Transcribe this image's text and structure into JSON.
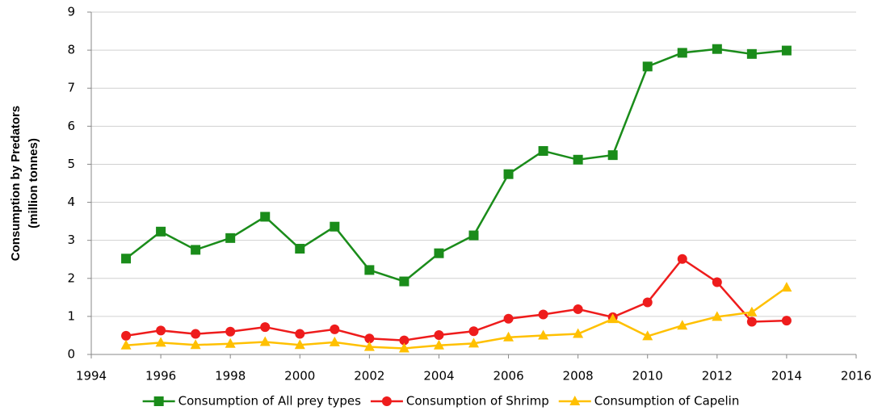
{
  "chart_data": {
    "type": "line",
    "y_label": [
      "Consumption by Predators",
      "(million  tonnes)"
    ],
    "x": [
      1995,
      1996,
      1997,
      1998,
      1999,
      2000,
      2001,
      2002,
      2003,
      2004,
      2005,
      2006,
      2007,
      2008,
      2009,
      2010,
      2011,
      2012,
      2013,
      2014
    ],
    "series": [
      {
        "name": "Consumption of All prey types",
        "color": "#1a8c1a",
        "marker": "square",
        "values": [
          2.52,
          3.23,
          2.75,
          3.06,
          3.62,
          2.78,
          3.36,
          2.22,
          1.92,
          2.66,
          3.13,
          4.74,
          5.35,
          5.12,
          5.24,
          7.57,
          7.93,
          8.03,
          7.9,
          7.99
        ]
      },
      {
        "name": "Consumption of Shrimp",
        "color": "#ee1c1c",
        "marker": "circle",
        "values": [
          0.49,
          0.63,
          0.54,
          0.6,
          0.72,
          0.54,
          0.66,
          0.42,
          0.37,
          0.51,
          0.61,
          0.94,
          1.05,
          1.19,
          0.98,
          1.37,
          2.51,
          1.9,
          0.86,
          0.89
        ]
      },
      {
        "name": "Consumption of Capelin",
        "color": "#ffc000",
        "marker": "triangle",
        "values": [
          0.24,
          0.31,
          0.25,
          0.28,
          0.33,
          0.25,
          0.32,
          0.2,
          0.16,
          0.24,
          0.29,
          0.45,
          0.5,
          0.54,
          0.93,
          0.48,
          0.76,
          0.99,
          1.11,
          1.76
        ]
      }
    ],
    "xlim": [
      1994,
      2016
    ],
    "xticks": [
      1994,
      1996,
      1998,
      2000,
      2002,
      2004,
      2006,
      2008,
      2010,
      2012,
      2014,
      2016
    ],
    "ylim": [
      0,
      9
    ],
    "yticks": [
      0,
      1,
      2,
      3,
      4,
      5,
      6,
      7,
      8,
      9
    ],
    "grid": true,
    "legend": "bottom"
  }
}
